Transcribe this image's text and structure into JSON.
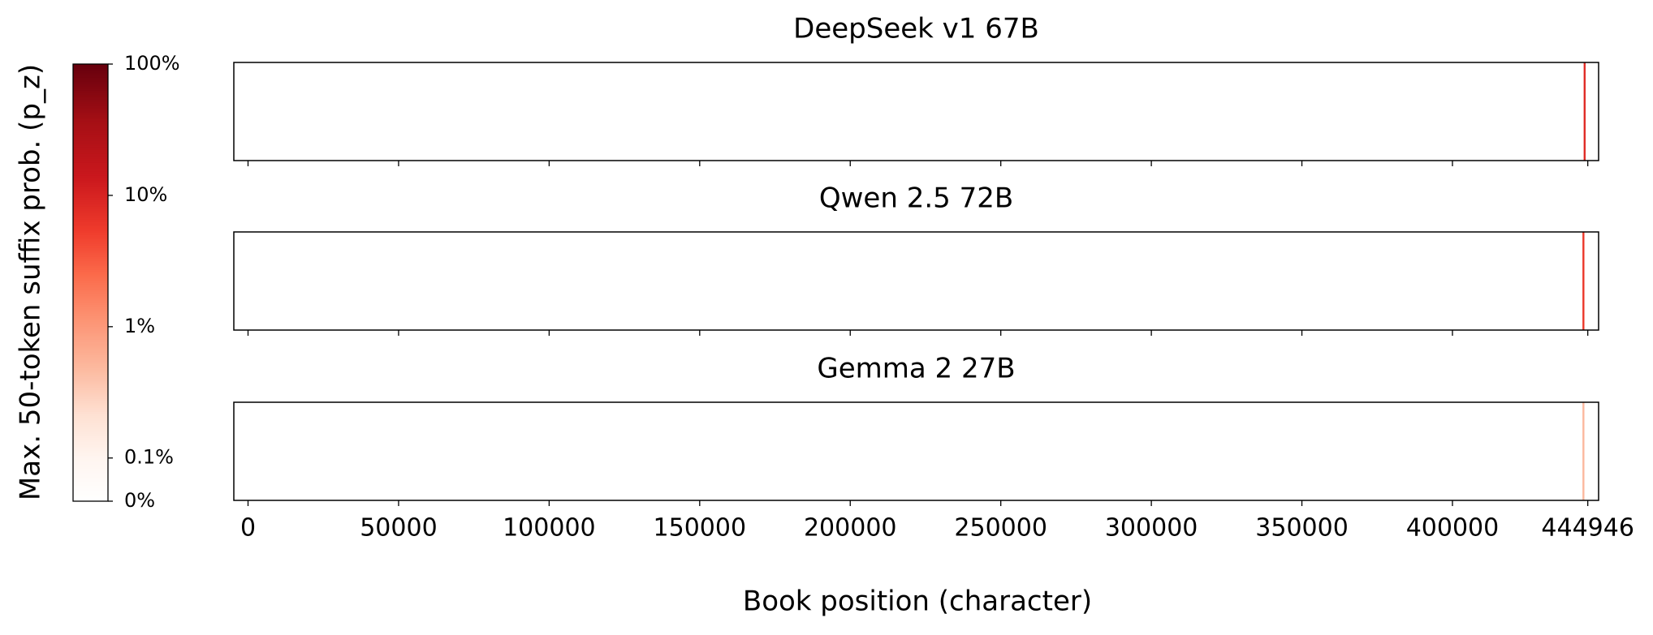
{
  "chart_data": {
    "type": "heatmap-strips",
    "xlabel": "Book position (character)",
    "xlim": [
      -4720,
      448540
    ],
    "xticks": [
      0,
      50000,
      100000,
      150000,
      200000,
      250000,
      300000,
      350000,
      400000,
      444946
    ],
    "colormap": "Reds",
    "colorbar": {
      "label": "Max. 50-token suffix prob. (p_z)",
      "scale": "symlog",
      "linthresh": 0.1,
      "lim": [
        0,
        100
      ],
      "ticks": [
        {
          "value": 0,
          "label": "0%"
        },
        {
          "value": 0.1,
          "label": "0.1%"
        },
        {
          "value": 1,
          "label": "1%"
        },
        {
          "value": 10,
          "label": "10%"
        },
        {
          "value": 100,
          "label": "100%"
        }
      ]
    },
    "panels": [
      {
        "title": "DeepSeek v1 67B",
        "x": [
          443900
        ],
        "values": [
          8
        ]
      },
      {
        "title": "Qwen 2.5 72B",
        "x": [
          443500
        ],
        "values": [
          6
        ]
      },
      {
        "title": "Gemma 2 27B",
        "x": [
          443500
        ],
        "values": [
          0.5
        ]
      }
    ]
  }
}
